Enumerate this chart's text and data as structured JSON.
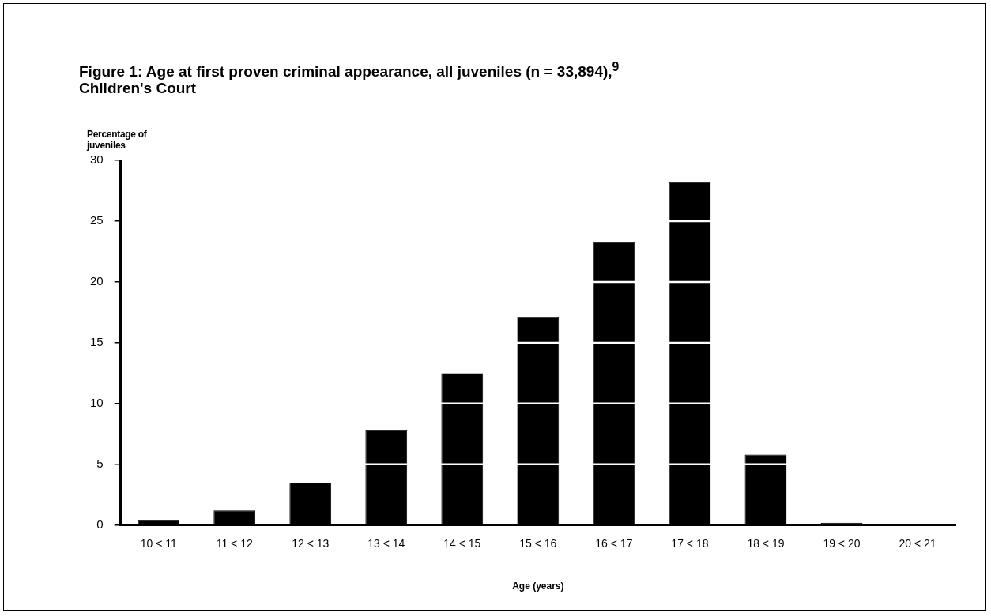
{
  "chart_data": {
    "type": "bar",
    "title": "Figure 1: Age at first proven criminal appearance, all juveniles (n = 33,894),$^{9}$ Children's Court",
    "ylabel": "Percentage of juveniles",
    "xlabel": "Age (years)",
    "categories": [
      "10 < 11",
      "11 < 12",
      "12 < 13",
      "13 < 14",
      "14 < 15",
      "15 < 16",
      "16 < 17",
      "17 < 18",
      "18 < 19",
      "19 < 20",
      "20 < 21"
    ],
    "values": [
      0.4,
      1.2,
      3.5,
      7.8,
      12.5,
      17.1,
      23.3,
      28.2,
      5.8,
      0.2,
      0
    ],
    "color": "#000000",
    "ylim": [
      0,
      30
    ],
    "yticks": [
      0,
      5,
      10,
      15,
      20,
      25,
      30
    ],
    "grid": "y",
    "legend": false
  }
}
